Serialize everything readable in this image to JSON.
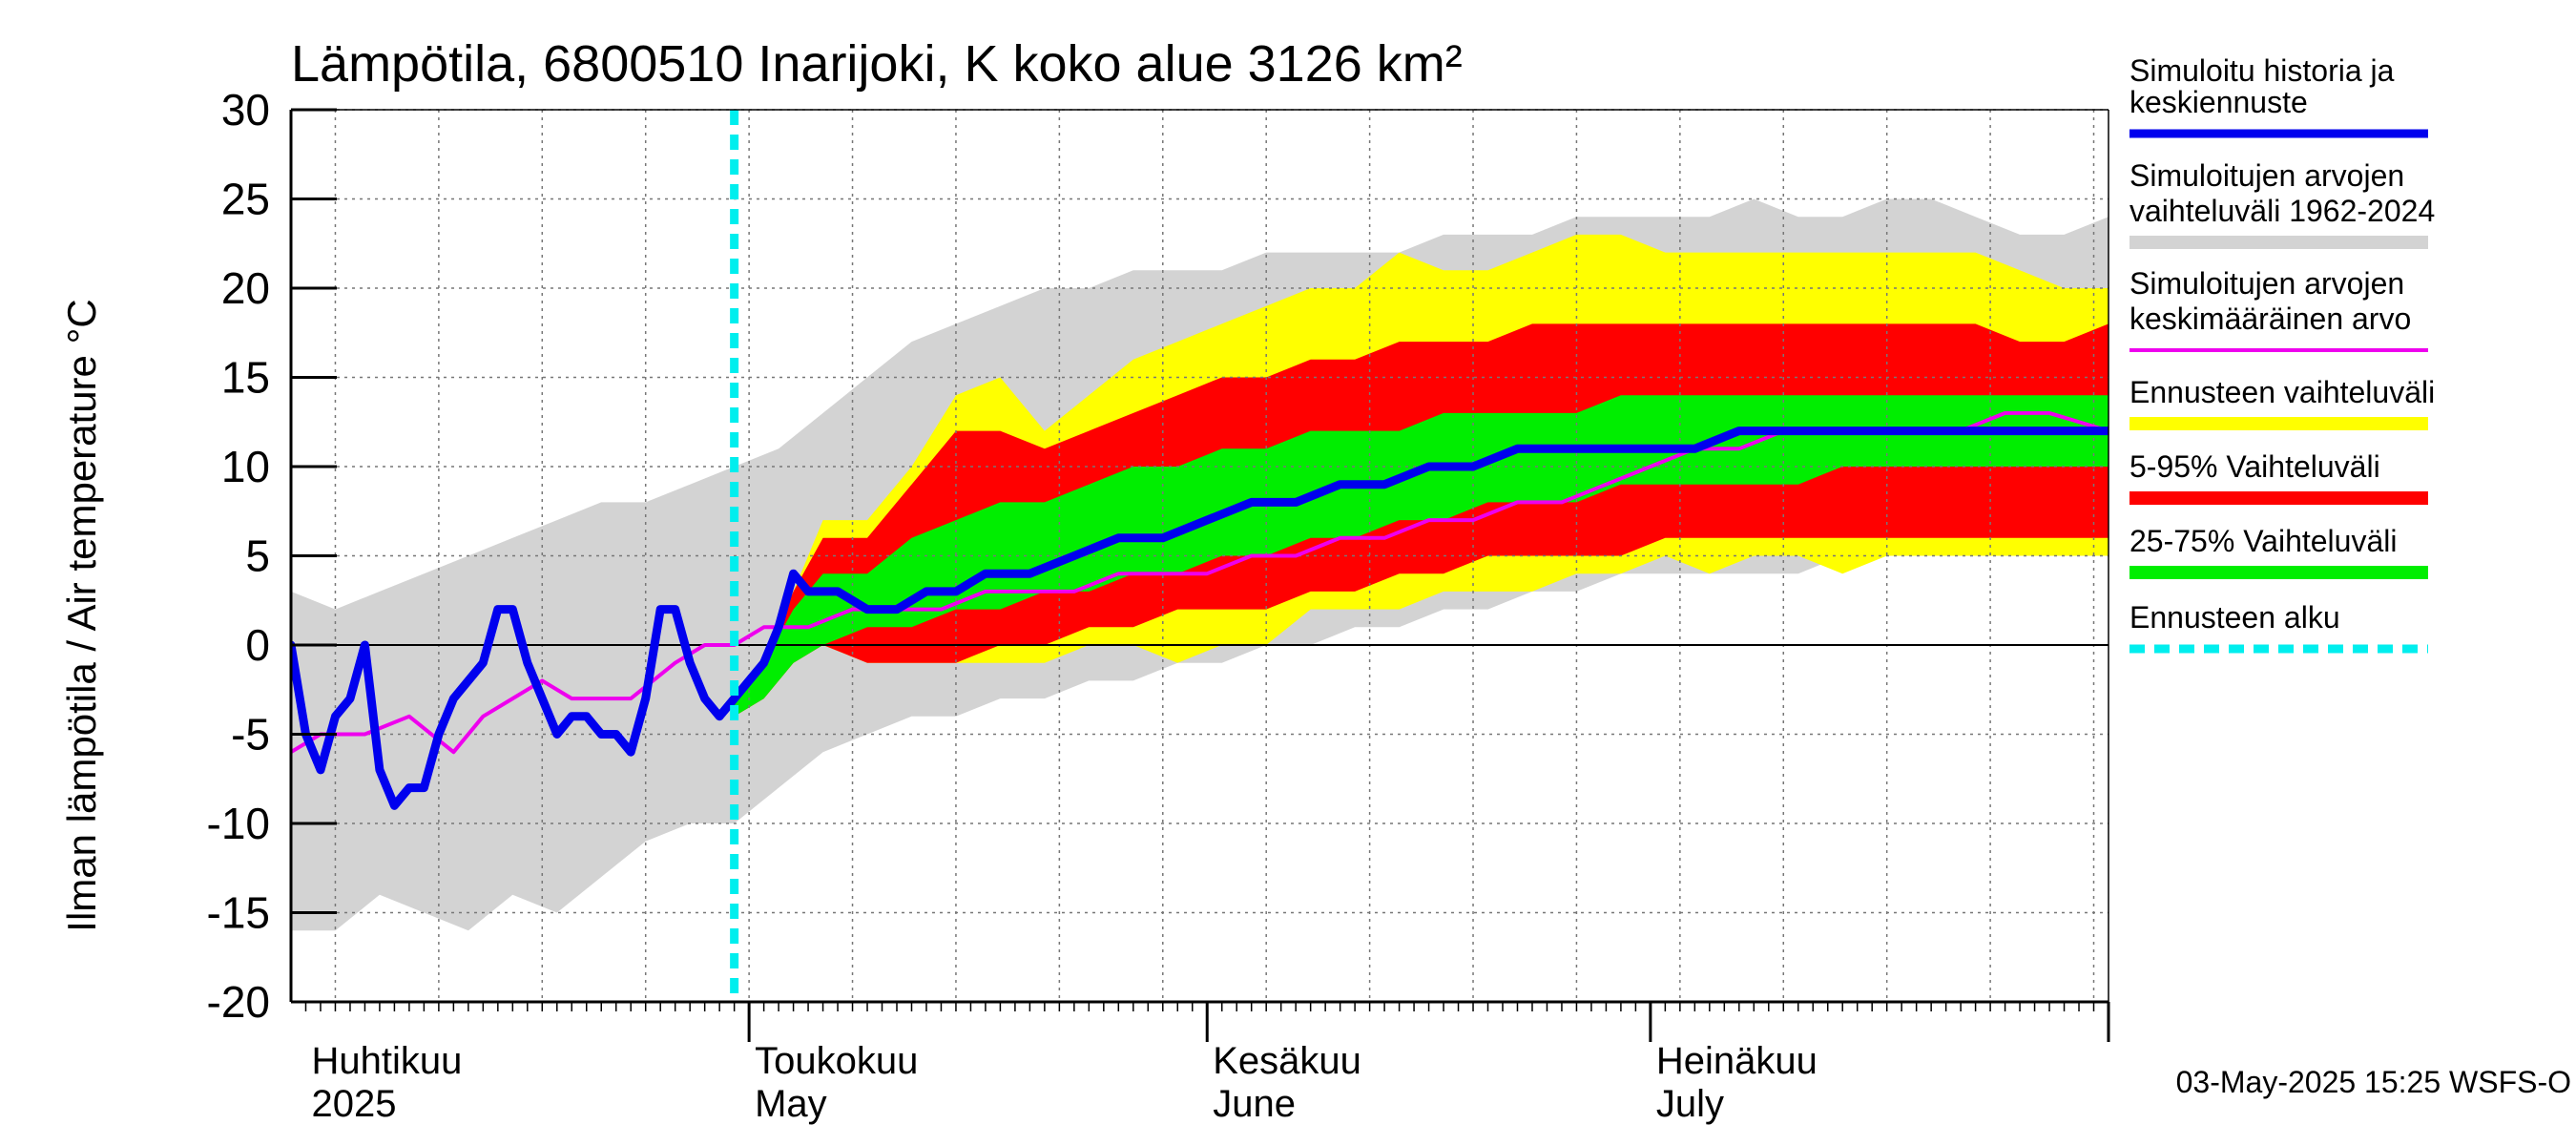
{
  "chart_data": {
    "type": "area",
    "title": "Lämpötila, 6800510 Inarijoki, K koko alue 3126 km²",
    "ylabel": "Ilman lämpötila / Air temperature   °C",
    "ylim": [
      -20,
      30
    ],
    "yticks": [
      30,
      25,
      20,
      15,
      10,
      5,
      0,
      -5,
      -10,
      -15,
      -20
    ],
    "xlim": [
      "2025-03-31",
      "2025-08-01"
    ],
    "month_labels": [
      {
        "date": "2025-04-01",
        "line1": "Huhtikuu",
        "line2": "2025"
      },
      {
        "date": "2025-05-01",
        "line1": "Toukokuu",
        "line2": "May"
      },
      {
        "date": "2025-06-01",
        "line1": "Kesäkuu",
        "line2": "June"
      },
      {
        "date": "2025-07-01",
        "line1": "Heinäkuu",
        "line2": "July"
      }
    ],
    "forecast_start": "2025-04-30",
    "grid": true,
    "legend_position": "right",
    "series": [
      {
        "name": "Simuloitujen arvojen vaihteluväli 1962-2024",
        "color": "#d3d3d3",
        "kind": "band",
        "x": [
          "2025-03-31",
          "2025-04-03",
          "2025-04-06",
          "2025-04-09",
          "2025-04-12",
          "2025-04-15",
          "2025-04-18",
          "2025-04-21",
          "2025-04-24",
          "2025-04-27",
          "2025-04-30",
          "2025-05-03",
          "2025-05-06",
          "2025-05-09",
          "2025-05-12",
          "2025-05-15",
          "2025-05-18",
          "2025-05-21",
          "2025-05-24",
          "2025-05-27",
          "2025-05-30",
          "2025-06-02",
          "2025-06-05",
          "2025-06-08",
          "2025-06-11",
          "2025-06-14",
          "2025-06-17",
          "2025-06-20",
          "2025-06-23",
          "2025-06-26",
          "2025-06-29",
          "2025-07-02",
          "2025-07-05",
          "2025-07-08",
          "2025-07-11",
          "2025-07-14",
          "2025-07-17",
          "2025-07-20",
          "2025-07-23",
          "2025-07-26",
          "2025-07-29",
          "2025-08-01"
        ],
        "lower": [
          -16,
          -16,
          -14,
          -15,
          -16,
          -14,
          -15,
          -13,
          -11,
          -10,
          -10,
          -8,
          -6,
          -5,
          -4,
          -4,
          -3,
          -3,
          -2,
          -2,
          -1,
          -1,
          0,
          0,
          1,
          1,
          2,
          2,
          3,
          3,
          4,
          4,
          4,
          4,
          4,
          5,
          5,
          5,
          5,
          5,
          5,
          5
        ],
        "upper": [
          3,
          2,
          3,
          4,
          5,
          6,
          7,
          8,
          8,
          9,
          10,
          11,
          13,
          15,
          17,
          18,
          19,
          20,
          20,
          21,
          21,
          21,
          22,
          22,
          22,
          22,
          23,
          23,
          23,
          24,
          24,
          24,
          24,
          25,
          24,
          24,
          25,
          25,
          24,
          23,
          23,
          24
        ]
      },
      {
        "name": "Ennusteen vaihteluväli",
        "color": "#ffff00",
        "kind": "band",
        "x": [
          "2025-04-30",
          "2025-05-02",
          "2025-05-04",
          "2025-05-06",
          "2025-05-09",
          "2025-05-12",
          "2025-05-15",
          "2025-05-18",
          "2025-05-21",
          "2025-05-24",
          "2025-05-27",
          "2025-05-30",
          "2025-06-02",
          "2025-06-05",
          "2025-06-08",
          "2025-06-11",
          "2025-06-14",
          "2025-06-17",
          "2025-06-20",
          "2025-06-23",
          "2025-06-26",
          "2025-06-29",
          "2025-07-02",
          "2025-07-05",
          "2025-07-08",
          "2025-07-11",
          "2025-07-14",
          "2025-07-17",
          "2025-07-20",
          "2025-07-23",
          "2025-07-26",
          "2025-07-29",
          "2025-08-01"
        ],
        "lower": [
          -4,
          -3,
          -1,
          0,
          -1,
          -1,
          -1,
          -1,
          -1,
          0,
          0,
          -1,
          0,
          0,
          2,
          2,
          2,
          3,
          3,
          3,
          4,
          4,
          5,
          4,
          5,
          5,
          4,
          5,
          5,
          5,
          5,
          5,
          5
        ],
        "upper": [
          -3,
          -1,
          3,
          7,
          7,
          10,
          14,
          15,
          12,
          14,
          16,
          17,
          18,
          19,
          20,
          20,
          22,
          21,
          21,
          22,
          23,
          23,
          22,
          22,
          22,
          22,
          22,
          22,
          22,
          22,
          21,
          20,
          20
        ]
      },
      {
        "name": "5-95% Vaihteluväli",
        "color": "#ff0000",
        "kind": "band",
        "x": [
          "2025-04-30",
          "2025-05-02",
          "2025-05-04",
          "2025-05-06",
          "2025-05-09",
          "2025-05-12",
          "2025-05-15",
          "2025-05-18",
          "2025-05-21",
          "2025-05-24",
          "2025-05-27",
          "2025-05-30",
          "2025-06-02",
          "2025-06-05",
          "2025-06-08",
          "2025-06-11",
          "2025-06-14",
          "2025-06-17",
          "2025-06-20",
          "2025-06-23",
          "2025-06-26",
          "2025-06-29",
          "2025-07-02",
          "2025-07-05",
          "2025-07-08",
          "2025-07-11",
          "2025-07-14",
          "2025-07-17",
          "2025-07-20",
          "2025-07-23",
          "2025-07-26",
          "2025-07-29",
          "2025-08-01"
        ],
        "lower": [
          -4,
          -3,
          -1,
          0,
          -1,
          -1,
          -1,
          0,
          0,
          1,
          1,
          2,
          2,
          2,
          3,
          3,
          4,
          4,
          5,
          5,
          5,
          5,
          6,
          6,
          6,
          6,
          6,
          6,
          6,
          6,
          6,
          6,
          6
        ],
        "upper": [
          -3,
          -1,
          3,
          6,
          6,
          9,
          12,
          12,
          11,
          12,
          13,
          14,
          15,
          15,
          16,
          16,
          17,
          17,
          17,
          18,
          18,
          18,
          18,
          18,
          18,
          18,
          18,
          18,
          18,
          18,
          17,
          17,
          18
        ]
      },
      {
        "name": "25-75% Vaihteluväli",
        "color": "#00ee00",
        "kind": "band",
        "x": [
          "2025-04-30",
          "2025-05-02",
          "2025-05-04",
          "2025-05-06",
          "2025-05-09",
          "2025-05-12",
          "2025-05-15",
          "2025-05-18",
          "2025-05-21",
          "2025-05-24",
          "2025-05-27",
          "2025-05-30",
          "2025-06-02",
          "2025-06-05",
          "2025-06-08",
          "2025-06-11",
          "2025-06-14",
          "2025-06-17",
          "2025-06-20",
          "2025-06-23",
          "2025-06-26",
          "2025-06-29",
          "2025-07-02",
          "2025-07-05",
          "2025-07-08",
          "2025-07-11",
          "2025-07-14",
          "2025-07-17",
          "2025-07-20",
          "2025-07-23",
          "2025-07-26",
          "2025-07-29",
          "2025-08-01"
        ],
        "lower": [
          -4,
          -3,
          -1,
          0,
          1,
          1,
          2,
          2,
          3,
          3,
          4,
          4,
          5,
          5,
          6,
          6,
          7,
          7,
          8,
          8,
          8,
          9,
          9,
          9,
          9,
          9,
          10,
          10,
          10,
          10,
          10,
          10,
          10
        ],
        "upper": [
          -3,
          -1,
          2,
          4,
          4,
          6,
          7,
          8,
          8,
          9,
          10,
          10,
          11,
          11,
          12,
          12,
          12,
          13,
          13,
          13,
          13,
          14,
          14,
          14,
          14,
          14,
          14,
          14,
          14,
          14,
          14,
          14,
          14
        ]
      },
      {
        "name": "Simuloitujen arvojen keskimääräinen arvo",
        "color": "#ee00ee",
        "kind": "line",
        "x": [
          "2025-03-31",
          "2025-04-02",
          "2025-04-05",
          "2025-04-08",
          "2025-04-11",
          "2025-04-13",
          "2025-04-15",
          "2025-04-17",
          "2025-04-19",
          "2025-04-21",
          "2025-04-23",
          "2025-04-26",
          "2025-04-28",
          "2025-04-30",
          "2025-05-02",
          "2025-05-05",
          "2025-05-08",
          "2025-05-11",
          "2025-05-14",
          "2025-05-17",
          "2025-05-20",
          "2025-05-23",
          "2025-05-26",
          "2025-05-29",
          "2025-06-01",
          "2025-06-04",
          "2025-06-07",
          "2025-06-10",
          "2025-06-13",
          "2025-06-16",
          "2025-06-19",
          "2025-06-22",
          "2025-06-25",
          "2025-06-28",
          "2025-07-01",
          "2025-07-04",
          "2025-07-07",
          "2025-07-10",
          "2025-07-13",
          "2025-07-16",
          "2025-07-19",
          "2025-07-22",
          "2025-07-25",
          "2025-07-28",
          "2025-08-01"
        ],
        "values": [
          -6,
          -5,
          -5,
          -4,
          -6,
          -4,
          -3,
          -2,
          -3,
          -3,
          -3,
          -1,
          0,
          0,
          1,
          1,
          2,
          2,
          2,
          3,
          3,
          3,
          4,
          4,
          4,
          5,
          5,
          6,
          6,
          7,
          7,
          8,
          8,
          9,
          10,
          11,
          11,
          12,
          12,
          12,
          12,
          12,
          13,
          13,
          12
        ]
      },
      {
        "name": "Simuloitu historia ja keskiennuste",
        "color": "#0000ee",
        "kind": "line",
        "x": [
          "2025-03-31",
          "2025-04-01",
          "2025-04-02",
          "2025-04-03",
          "2025-04-04",
          "2025-04-05",
          "2025-04-06",
          "2025-04-07",
          "2025-04-08",
          "2025-04-09",
          "2025-04-10",
          "2025-04-11",
          "2025-04-12",
          "2025-04-13",
          "2025-04-14",
          "2025-04-15",
          "2025-04-16",
          "2025-04-17",
          "2025-04-18",
          "2025-04-19",
          "2025-04-20",
          "2025-04-21",
          "2025-04-22",
          "2025-04-23",
          "2025-04-24",
          "2025-04-25",
          "2025-04-26",
          "2025-04-27",
          "2025-04-28",
          "2025-04-29",
          "2025-04-30",
          "2025-05-01",
          "2025-05-02",
          "2025-05-03",
          "2025-05-04",
          "2025-05-05",
          "2025-05-06",
          "2025-05-07",
          "2025-05-09",
          "2025-05-11",
          "2025-05-13",
          "2025-05-15",
          "2025-05-17",
          "2025-05-20",
          "2025-05-23",
          "2025-05-26",
          "2025-05-29",
          "2025-06-01",
          "2025-06-04",
          "2025-06-07",
          "2025-06-10",
          "2025-06-13",
          "2025-06-16",
          "2025-06-19",
          "2025-06-22",
          "2025-06-25",
          "2025-06-28",
          "2025-07-01",
          "2025-07-04",
          "2025-07-07",
          "2025-07-10",
          "2025-07-13",
          "2025-07-16",
          "2025-07-19",
          "2025-07-22",
          "2025-07-25",
          "2025-07-28",
          "2025-08-01"
        ],
        "values": [
          0,
          -5,
          -7,
          -4,
          -3,
          0,
          -7,
          -9,
          -8,
          -8,
          -5,
          -3,
          -2,
          -1,
          2,
          2,
          -1,
          -3,
          -5,
          -4,
          -4,
          -5,
          -5,
          -6,
          -3,
          2,
          2,
          -1,
          -3,
          -4,
          -3,
          -2,
          -1,
          1,
          4,
          3,
          3,
          3,
          2,
          2,
          3,
          3,
          4,
          4,
          5,
          6,
          6,
          7,
          8,
          8,
          9,
          9,
          10,
          10,
          11,
          11,
          11,
          11,
          11,
          12,
          12,
          12,
          12,
          12,
          12,
          12,
          12,
          12
        ]
      },
      {
        "name": "Ennusteen alku",
        "color": "#00eeee",
        "kind": "vline",
        "x": [
          "2025-04-30"
        ]
      }
    ]
  },
  "legend": [
    {
      "line1": "Simuloitu historia ja",
      "line2": "keskiennuste",
      "color": "#0000ee",
      "style": "solid-thick"
    },
    {
      "line1": "Simuloitujen arvojen",
      "line2": "vaihteluväli 1962-2024",
      "color": "#d3d3d3",
      "style": "solid-thick"
    },
    {
      "line1": "Simuloitujen arvojen",
      "line2": "keskimääräinen arvo",
      "color": "#ee00ee",
      "style": "solid-thin"
    },
    {
      "line1": "Ennusteen vaihteluväli",
      "line2": "",
      "color": "#ffff00",
      "style": "solid-thick"
    },
    {
      "line1": "5-95% Vaihteluväli",
      "line2": "",
      "color": "#ff0000",
      "style": "solid-thick"
    },
    {
      "line1": "25-75% Vaihteluväli",
      "line2": "",
      "color": "#00ee00",
      "style": "solid-thick"
    },
    {
      "line1": "Ennusteen alku",
      "line2": "",
      "color": "#00eeee",
      "style": "dashed"
    }
  ],
  "footer": "03-May-2025 15:25 WSFS-O"
}
